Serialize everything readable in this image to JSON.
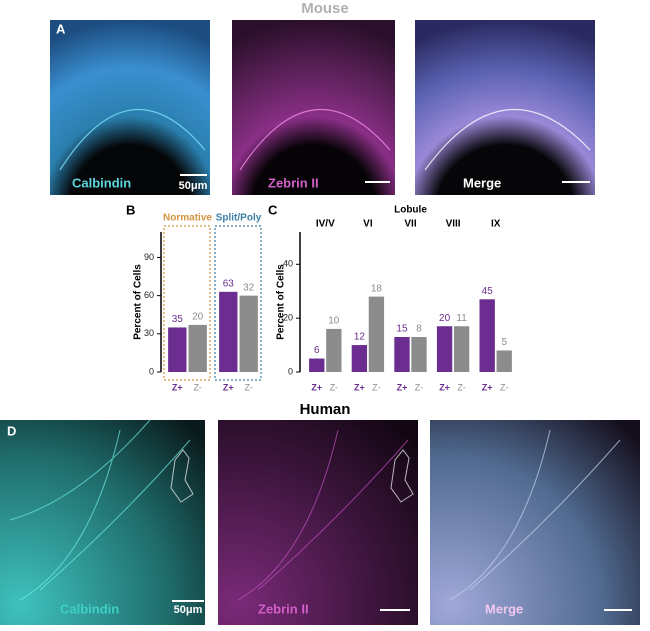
{
  "figure": {
    "mouse_title": "Mouse",
    "panel_a": "A",
    "mouse_images": [
      {
        "label": "Calbindin",
        "scale": "50μm"
      },
      {
        "label": "Zebrin II"
      },
      {
        "label": "Merge"
      }
    ],
    "panel_b": "B",
    "panel_c": "C",
    "panel_d": "D",
    "human_title": "Human",
    "human_images": [
      {
        "label": "Calbindin",
        "scale": "50μm"
      },
      {
        "label": "Zebrin II"
      },
      {
        "label": "Merge"
      }
    ]
  },
  "chart_data": [
    {
      "type": "bar",
      "y_label": "Percent of Cells",
      "categories": [
        "Normative",
        "Split/Poly"
      ],
      "category_colors": [
        "#d4933f",
        "#3d7fa6"
      ],
      "ylim": [
        0,
        110
      ],
      "yticks": [
        0,
        30,
        60,
        90
      ],
      "series": [
        {
          "name": "Z+",
          "color": "#6b2d8f",
          "values": [
            35,
            63
          ],
          "counts": [
            35,
            63
          ]
        },
        {
          "name": "Z-",
          "color": "#8c8c8c",
          "values": [
            37,
            60
          ],
          "counts": [
            20,
            32
          ]
        }
      ]
    },
    {
      "type": "bar",
      "title": "Lobule",
      "y_label": "Percent of Cells",
      "categories": [
        "IV/V",
        "VI",
        "VII",
        "VIII",
        "IX"
      ],
      "ylim": [
        0,
        52
      ],
      "yticks": [
        0,
        20,
        40
      ],
      "series": [
        {
          "name": "Z+",
          "color": "#6b2d8f",
          "values": [
            5,
            10,
            13,
            17,
            27
          ],
          "counts": [
            6,
            12,
            15,
            20,
            45
          ]
        },
        {
          "name": "Z-",
          "color": "#8c8c8c",
          "values": [
            16,
            28,
            13,
            17,
            8
          ],
          "counts": [
            10,
            18,
            8,
            11,
            5
          ]
        }
      ]
    }
  ]
}
